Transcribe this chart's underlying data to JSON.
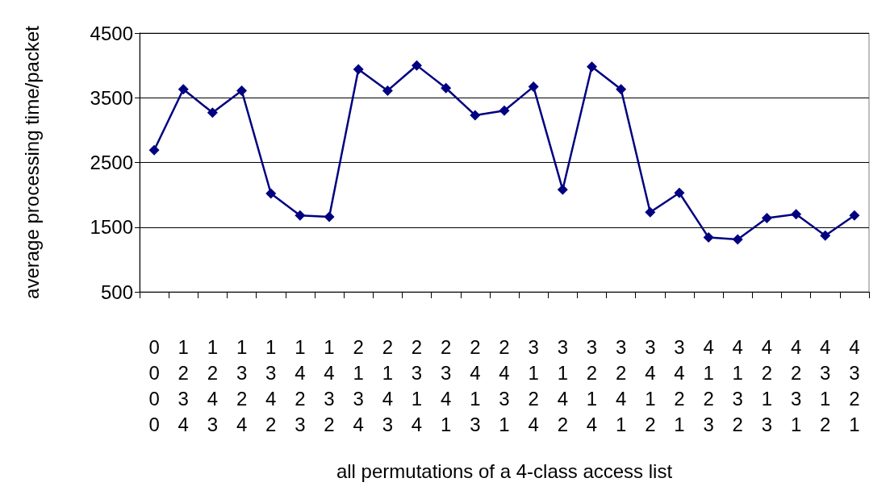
{
  "chart_data": {
    "type": "line",
    "xlabel": "all permutations of a 4-class access list",
    "ylabel": "average processing time/packet",
    "categories": [
      "0\n0\n0\n0",
      "1\n2\n3\n4",
      "1\n2\n4\n3",
      "1\n3\n2\n4",
      "1\n3\n4\n2",
      "1\n4\n2\n3",
      "1\n4\n3\n2",
      "2\n1\n3\n4",
      "2\n1\n4\n3",
      "2\n3\n1\n4",
      "2\n3\n4\n1",
      "2\n4\n1\n3",
      "2\n4\n3\n1",
      "3\n1\n2\n4",
      "3\n1\n4\n2",
      "3\n2\n1\n4",
      "3\n2\n4\n1",
      "3\n4\n1\n2",
      "3\n4\n2\n1",
      "4\n1\n2\n3",
      "4\n1\n3\n2",
      "4\n2\n1\n3",
      "4\n2\n3\n1",
      "4\n3\n1\n2",
      "4\n3\n2\n1"
    ],
    "series": [
      {
        "color": "#000080",
        "values": [
          2690,
          3630,
          3270,
          3610,
          2020,
          1680,
          1660,
          3940,
          3610,
          4000,
          3650,
          3230,
          3300,
          3670,
          2080,
          3980,
          3630,
          1730,
          2030,
          1340,
          1310,
          1640,
          1700,
          1370,
          1680
        ]
      }
    ],
    "ylim": [
      500,
      4500
    ],
    "yticks": [
      500,
      1500,
      2500,
      3500,
      4500
    ],
    "grid": "y",
    "marker": "diamond",
    "line_style": "solid"
  }
}
